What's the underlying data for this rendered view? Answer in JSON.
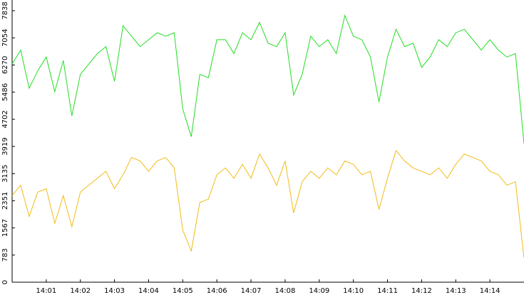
{
  "chart_data": {
    "type": "line",
    "categories": [
      null,
      null,
      null,
      null,
      "14:01",
      null,
      null,
      null,
      "14:02",
      null,
      null,
      null,
      "14:03",
      null,
      null,
      null,
      "14:04",
      null,
      null,
      null,
      "14:05",
      null,
      null,
      null,
      "14:06",
      null,
      null,
      null,
      "14:07",
      null,
      null,
      null,
      "14:08",
      null,
      null,
      null,
      "14:09",
      null,
      null,
      null,
      "14:10",
      null,
      null,
      null,
      "14:11",
      null,
      null,
      null,
      "14:12",
      null,
      null,
      null,
      "14:13",
      null,
      null,
      null,
      "14:14",
      null,
      null,
      null,
      null
    ],
    "series": [
      {
        "color": "#22dd22",
        "values": [
          6300,
          6700,
          5600,
          6100,
          6500,
          5500,
          6400,
          4800,
          6000,
          6300,
          6600,
          6800,
          5800,
          7400,
          7100,
          6800,
          7000,
          7200,
          7100,
          7200,
          5000,
          4200,
          6000,
          5900,
          7000,
          7000,
          6600,
          7200,
          7000,
          7500,
          6900,
          6800,
          7200,
          5400,
          6000,
          7100,
          6800,
          7000,
          6600,
          7700,
          7100,
          7000,
          6500,
          5200,
          6500,
          7300,
          6800,
          6900,
          6200,
          6500,
          7000,
          6800,
          7200,
          7300,
          7000,
          6700,
          7000,
          6700,
          6500,
          6600,
          4000
        ]
      },
      {
        "color": "#f2bb14",
        "values": [
          2500,
          2800,
          1900,
          2600,
          2700,
          1700,
          2500,
          1600,
          2600,
          2800,
          3000,
          3200,
          2700,
          3100,
          3600,
          3500,
          3200,
          3500,
          3600,
          3300,
          1500,
          900,
          2300,
          2400,
          3100,
          3300,
          3000,
          3400,
          3000,
          3700,
          3300,
          2800,
          3500,
          2000,
          2900,
          3200,
          3000,
          3300,
          3100,
          3500,
          3400,
          3100,
          3200,
          2100,
          3000,
          3800,
          3500,
          3300,
          3200,
          3100,
          3300,
          3000,
          3400,
          3700,
          3600,
          3500,
          3200,
          3100,
          2800,
          2900,
          700
        ]
      }
    ],
    "ylim": [
      0,
      7838
    ],
    "yticks": [
      0,
      783,
      1567,
      2351,
      3135,
      3919,
      4702,
      5486,
      6270,
      7054,
      7838
    ]
  }
}
